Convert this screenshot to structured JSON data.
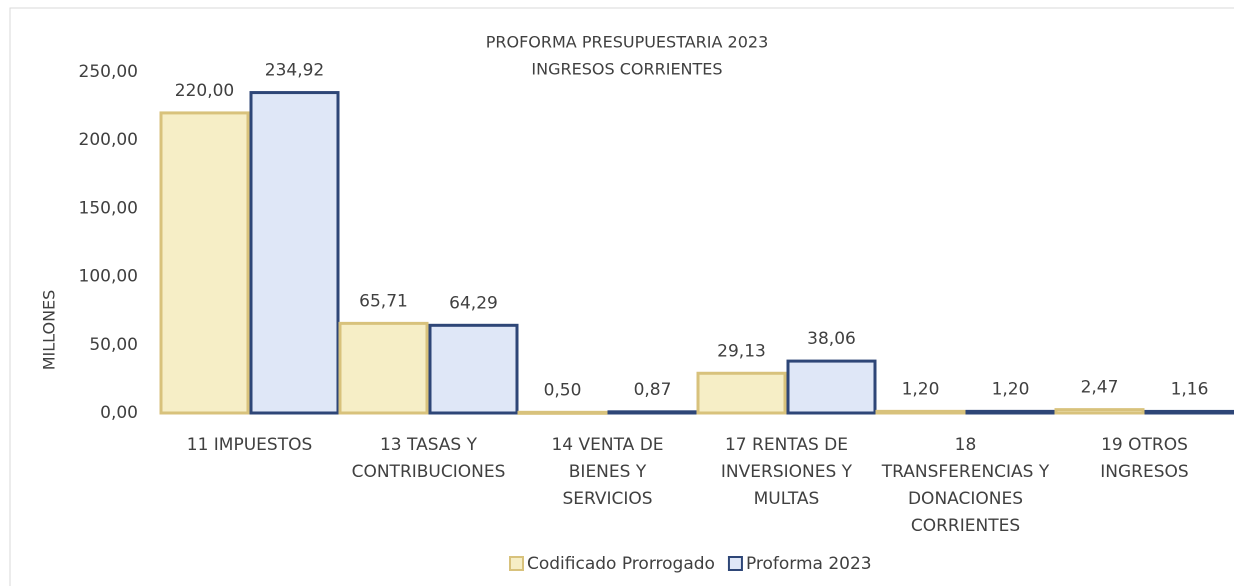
{
  "chart_data": {
    "type": "bar",
    "title": "PROFORMA PRESUPUESTARIA 2023",
    "subtitle": "INGRESOS CORRIENTES",
    "y_label": "MILLONES",
    "categories": [
      "11 IMPUESTOS",
      "13 TASAS Y CONTRIBUCIONES",
      "14 VENTA DE BIENES Y SERVICIOS",
      "17 RENTAS DE INVERSIONES Y MULTAS",
      "18 TRANSFERENCIAS Y DONACIONES CORRIENTES",
      "19 OTROS INGRESOS"
    ],
    "series": [
      {
        "name": "Codificado Prorrogado",
        "color": "#f6eec6",
        "edge": "#d8c27c",
        "values": [
          220.0,
          65.71,
          0.5,
          29.13,
          1.2,
          2.47
        ],
        "value_labels": [
          "220,00",
          "65,71",
          "0,50",
          "29,13",
          "1,20",
          "2,47"
        ]
      },
      {
        "name": "Proforma 2023",
        "color": "#dfe7f7",
        "edge": "#2e4677",
        "values": [
          234.92,
          64.29,
          0.87,
          38.06,
          1.2,
          1.16
        ],
        "value_labels": [
          "234,92",
          "64,29",
          "0,87",
          "38,06",
          "1,20",
          "1,16"
        ]
      }
    ],
    "ylim": [
      0,
      250
    ],
    "yticks": [
      {
        "value": 0,
        "label": "0,00"
      },
      {
        "value": 50,
        "label": "50,00"
      },
      {
        "value": 100,
        "label": "100,00"
      },
      {
        "value": 150,
        "label": "150,00"
      },
      {
        "value": 200,
        "label": "200,00"
      },
      {
        "value": 250,
        "label": "250,00"
      }
    ],
    "legend": "bottom"
  }
}
